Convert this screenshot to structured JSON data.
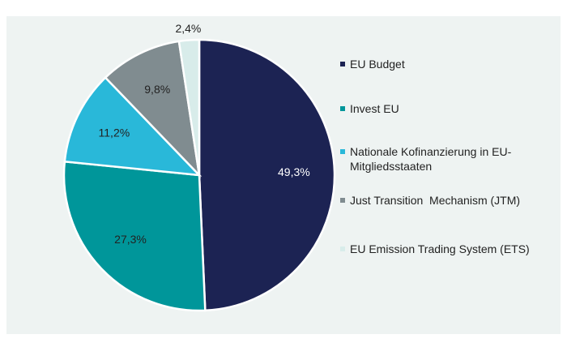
{
  "chart_data": {
    "type": "pie",
    "categories": [
      "EU Budget",
      "Invest EU",
      "Nationale Kofinanzierung in EU-Mitgliedsstaaten",
      "Just Transition  Mechanism (JTM)",
      "EU Emission Trading System (ETS)"
    ],
    "values": [
      49.3,
      27.3,
      11.2,
      9.8,
      2.4
    ],
    "value_labels": [
      "49,3%",
      "27,3%",
      "11,2%",
      "9,8%",
      "2,4%"
    ],
    "colors": [
      "#1c2353",
      "#00969a",
      "#29b8d9",
      "#808c90",
      "#d8ecea"
    ],
    "legend": "right"
  }
}
